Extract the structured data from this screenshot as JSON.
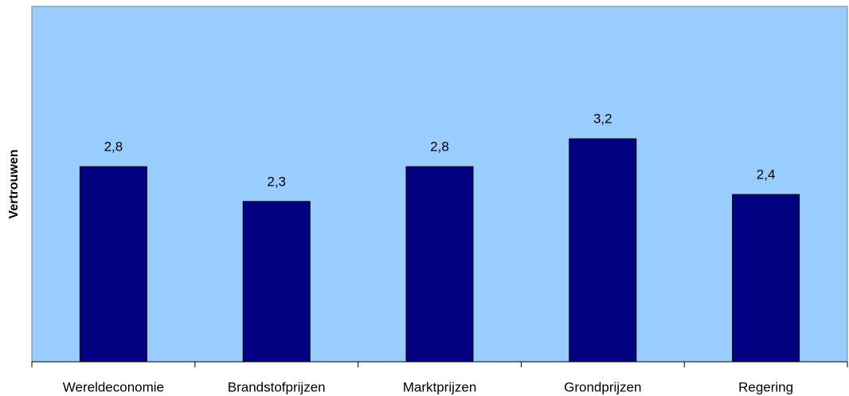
{
  "chart_data": {
    "type": "bar",
    "ylabel": "Vertrouwen",
    "categories": [
      "Wereldeconomie",
      "Brandstofprijzen",
      "Marktprijzen",
      "Grondprijzen",
      "Regering"
    ],
    "values": [
      2.8,
      2.3,
      2.8,
      3.2,
      2.4
    ],
    "value_labels": [
      "2,8",
      "2,3",
      "2,8",
      "3,2",
      "2,4"
    ],
    "color": "#000080",
    "background": "#99ccff",
    "ylim": [
      0,
      5.1
    ],
    "grid": false
  }
}
